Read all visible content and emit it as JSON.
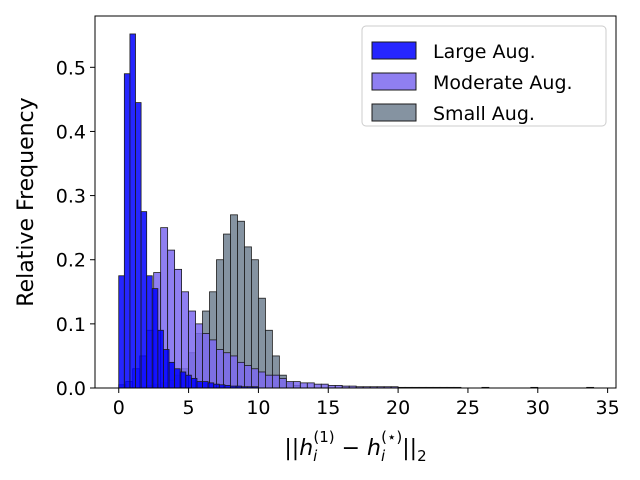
{
  "chart_data": {
    "type": "histogram",
    "title": "",
    "xlabel": "||h_i^(1) − h_i^(⋆)||_2",
    "ylabel": "Relative Frequency",
    "xlim": [
      -1.7,
      35.6
    ],
    "ylim": [
      0,
      0.58
    ],
    "x_ticks": [
      0,
      5,
      10,
      15,
      20,
      25,
      30,
      35
    ],
    "y_ticks": [
      0.0,
      0.1,
      0.2,
      0.3,
      0.4,
      0.5
    ],
    "grid": false,
    "legend_position": "top-right",
    "series": [
      {
        "name": "Small Aug.",
        "color": "#708090",
        "alpha": 0.85,
        "bins": [
          [
            1.5,
            2.0,
            0.002
          ],
          [
            2.0,
            2.5,
            0.004
          ],
          [
            2.5,
            3.0,
            0.006
          ],
          [
            3.0,
            3.5,
            0.008
          ],
          [
            3.5,
            4.0,
            0.012
          ],
          [
            4.0,
            4.5,
            0.02
          ],
          [
            4.5,
            5.0,
            0.03
          ],
          [
            5.0,
            5.5,
            0.055
          ],
          [
            5.5,
            6.0,
            0.085
          ],
          [
            6.0,
            6.5,
            0.12
          ],
          [
            6.5,
            7.0,
            0.15
          ],
          [
            7.0,
            7.5,
            0.2
          ],
          [
            7.5,
            8.0,
            0.24
          ],
          [
            8.0,
            8.5,
            0.27
          ],
          [
            8.5,
            9.0,
            0.26
          ],
          [
            9.0,
            9.5,
            0.22
          ],
          [
            9.5,
            10.0,
            0.2
          ],
          [
            10.0,
            10.5,
            0.14
          ],
          [
            10.5,
            11.0,
            0.09
          ],
          [
            11.0,
            11.5,
            0.05
          ],
          [
            11.5,
            12.0,
            0.02
          ],
          [
            12.0,
            12.5,
            0.008
          ],
          [
            12.5,
            13.0,
            0.004
          ]
        ]
      },
      {
        "name": "Moderate Aug.",
        "color": "#7b68ee",
        "alpha": 0.85,
        "bins": [
          [
            0.0,
            0.5,
            0.005
          ],
          [
            0.5,
            1.0,
            0.01
          ],
          [
            1.0,
            1.5,
            0.03
          ],
          [
            1.5,
            2.0,
            0.05
          ],
          [
            2.0,
            2.5,
            0.09
          ],
          [
            2.5,
            3.0,
            0.18
          ],
          [
            3.0,
            3.5,
            0.25
          ],
          [
            3.5,
            4.0,
            0.215
          ],
          [
            4.0,
            4.5,
            0.185
          ],
          [
            4.5,
            5.0,
            0.15
          ],
          [
            5.0,
            5.5,
            0.12
          ],
          [
            5.5,
            6.0,
            0.1
          ],
          [
            6.0,
            6.5,
            0.085
          ],
          [
            6.5,
            7.0,
            0.075
          ],
          [
            7.0,
            7.5,
            0.06
          ],
          [
            7.5,
            8.0,
            0.055
          ],
          [
            8.0,
            8.5,
            0.05
          ],
          [
            8.5,
            9.0,
            0.04
          ],
          [
            9.0,
            9.5,
            0.035
          ],
          [
            9.5,
            10.0,
            0.03
          ],
          [
            10.0,
            10.5,
            0.025
          ],
          [
            10.5,
            11.0,
            0.02
          ],
          [
            11.0,
            11.5,
            0.02
          ],
          [
            11.5,
            12.0,
            0.015
          ],
          [
            12.0,
            12.5,
            0.01
          ],
          [
            12.5,
            13.0,
            0.01
          ],
          [
            13.0,
            13.5,
            0.008
          ],
          [
            13.5,
            14.0,
            0.008
          ],
          [
            14.0,
            14.5,
            0.006
          ],
          [
            14.5,
            15.0,
            0.006
          ],
          [
            15.0,
            15.5,
            0.004
          ],
          [
            15.5,
            16.0,
            0.004
          ],
          [
            16.0,
            16.5,
            0.003
          ],
          [
            16.5,
            17.0,
            0.003
          ],
          [
            17.0,
            17.5,
            0.002
          ],
          [
            17.5,
            18.0,
            0.002
          ],
          [
            18.0,
            18.5,
            0.002
          ],
          [
            18.5,
            19.0,
            0.002
          ],
          [
            19.0,
            19.5,
            0.002
          ],
          [
            19.5,
            20.0,
            0.002
          ],
          [
            20.0,
            20.5,
            0.001
          ],
          [
            20.5,
            21.0,
            0.001
          ],
          [
            21.0,
            21.5,
            0.001
          ],
          [
            21.5,
            22.0,
            0.001
          ],
          [
            22.0,
            22.5,
            0.001
          ],
          [
            22.5,
            23.0,
            0.001
          ],
          [
            23.0,
            23.5,
            0.001
          ],
          [
            23.5,
            24.0,
            0.001
          ],
          [
            24.0,
            24.5,
            0.001
          ],
          [
            26.0,
            26.5,
            0.001
          ],
          [
            29.5,
            30.0,
            0.001
          ],
          [
            33.5,
            34.0,
            0.001
          ]
        ]
      },
      {
        "name": "Large Aug.",
        "color": "#0000ff",
        "alpha": 0.85,
        "bins": [
          [
            0.0,
            0.4,
            0.175
          ],
          [
            0.4,
            0.8,
            0.49
          ],
          [
            0.8,
            1.2,
            0.552
          ],
          [
            1.2,
            1.6,
            0.445
          ],
          [
            1.6,
            2.0,
            0.275
          ],
          [
            2.0,
            2.4,
            0.175
          ],
          [
            2.4,
            2.8,
            0.155
          ],
          [
            2.8,
            3.2,
            0.09
          ],
          [
            3.2,
            3.6,
            0.06
          ],
          [
            3.6,
            4.0,
            0.04
          ],
          [
            4.0,
            4.4,
            0.03
          ],
          [
            4.4,
            4.8,
            0.025
          ],
          [
            4.8,
            5.2,
            0.02
          ],
          [
            5.2,
            5.6,
            0.015
          ],
          [
            5.6,
            6.0,
            0.01
          ],
          [
            6.0,
            6.4,
            0.01
          ],
          [
            6.4,
            6.8,
            0.008
          ],
          [
            6.8,
            7.2,
            0.006
          ],
          [
            7.2,
            7.6,
            0.005
          ],
          [
            7.6,
            8.0,
            0.004
          ],
          [
            8.0,
            8.4,
            0.003
          ],
          [
            8.4,
            8.8,
            0.003
          ],
          [
            8.8,
            9.2,
            0.002
          ],
          [
            9.2,
            9.6,
            0.002
          ],
          [
            9.6,
            10.0,
            0.002
          ]
        ]
      }
    ],
    "legend_order": [
      "Large Aug.",
      "Moderate Aug.",
      "Small Aug."
    ]
  }
}
